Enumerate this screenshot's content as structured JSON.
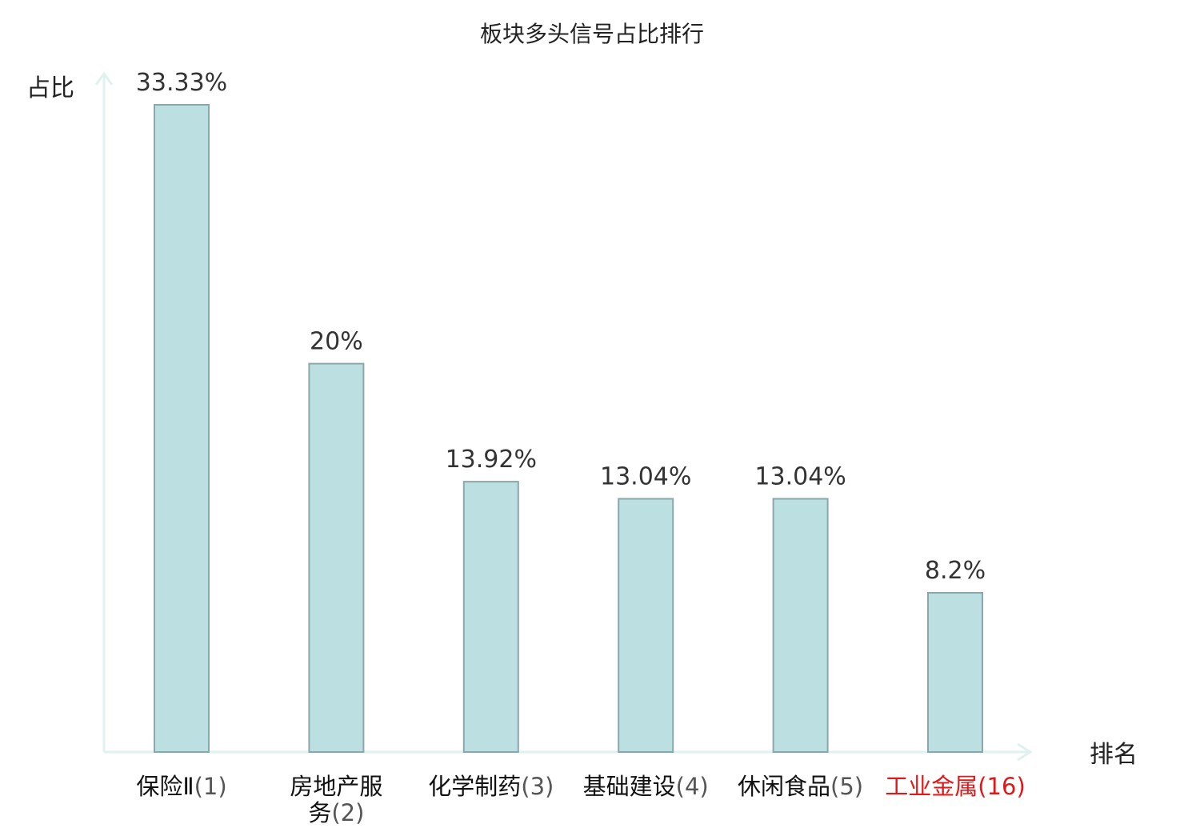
{
  "chart_data": {
    "type": "bar",
    "title": "板块多头信号占比排行",
    "ylabel": "占比",
    "xlabel": "排名",
    "ylim": [
      0,
      35
    ],
    "grid": false,
    "categories": [
      {
        "name": "保险Ⅱ",
        "rank": "(1)",
        "highlight": false
      },
      {
        "name": "房地产服务",
        "rank": "(2)",
        "highlight": false
      },
      {
        "name": "化学制药",
        "rank": "(3)",
        "highlight": false
      },
      {
        "name": "基础建设",
        "rank": "(4)",
        "highlight": false
      },
      {
        "name": "休闲食品",
        "rank": "(5)",
        "highlight": false
      },
      {
        "name": "工业金属",
        "rank": "(16)",
        "highlight": true
      }
    ],
    "values": [
      33.33,
      20,
      13.92,
      13.04,
      13.04,
      8.2
    ],
    "value_labels": [
      "33.33%",
      "20%",
      "13.92%",
      "13.04%",
      "13.04%",
      "8.2%"
    ],
    "colors": {
      "bar_fill": "#bce0e2",
      "bar_stroke": "#8aa8aa",
      "axis": "#dff2ef",
      "highlight": "#e01818"
    }
  }
}
